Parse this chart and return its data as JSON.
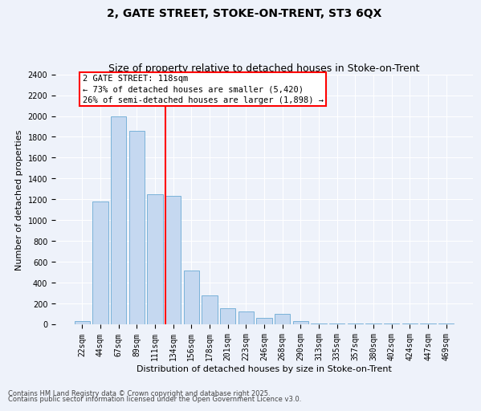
{
  "title1": "2, GATE STREET, STOKE-ON-TRENT, ST3 6QX",
  "title2": "Size of property relative to detached houses in Stoke-on-Trent",
  "xlabel": "Distribution of detached houses by size in Stoke-on-Trent",
  "ylabel": "Number of detached properties",
  "categories": [
    "22sqm",
    "44sqm",
    "67sqm",
    "89sqm",
    "111sqm",
    "134sqm",
    "156sqm",
    "178sqm",
    "201sqm",
    "223sqm",
    "246sqm",
    "268sqm",
    "290sqm",
    "313sqm",
    "335sqm",
    "357sqm",
    "380sqm",
    "402sqm",
    "424sqm",
    "447sqm",
    "469sqm"
  ],
  "values": [
    30,
    1180,
    2000,
    1860,
    1250,
    1230,
    520,
    280,
    155,
    120,
    60,
    100,
    30,
    10,
    5,
    5,
    5,
    5,
    5,
    5,
    5
  ],
  "bar_color": "#c5d8f0",
  "bar_edge_color": "#6aaad4",
  "red_line_x": 4.57,
  "annotation_box_text": "2 GATE STREET: 118sqm\n← 73% of detached houses are smaller (5,420)\n26% of semi-detached houses are larger (1,898) →",
  "ylim": [
    0,
    2400
  ],
  "yticks": [
    0,
    200,
    400,
    600,
    800,
    1000,
    1200,
    1400,
    1600,
    1800,
    2000,
    2200,
    2400
  ],
  "footer1": "Contains HM Land Registry data © Crown copyright and database right 2025.",
  "footer2": "Contains public sector information licensed under the Open Government Licence v3.0.",
  "bg_color": "#eef2fa",
  "grid_color": "#ffffff",
  "title_fontsize": 10,
  "subtitle_fontsize": 9,
  "label_fontsize": 8,
  "tick_fontsize": 7,
  "annotation_fontsize": 7.5,
  "footer_fontsize": 6
}
